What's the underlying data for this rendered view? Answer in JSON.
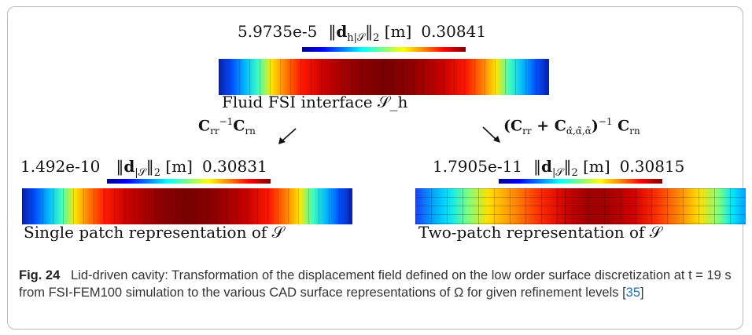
{
  "figure": {
    "top": {
      "min": "5.9735e-5",
      "max": "0.30841",
      "label": "‖d_h|𝒮‖₂ [m]",
      "strip_label": "Fluid FSI interface 𝒮_h"
    },
    "left": {
      "operator": "C_rr^−1 C_rn",
      "min": "1.492e-10",
      "max": "0.30831",
      "label": "‖d|𝒮‖₂ [m]",
      "strip_label": "Single patch representation of 𝒮"
    },
    "right": {
      "operator": "(C_rr + C_α̂,α̃,ᾱ)^−1 C_rn",
      "min": "1.7905e-11",
      "max": "0.30815",
      "label": "‖d|𝒮‖₂ [m]",
      "strip_label": "Two-patch representation of 𝒮"
    }
  },
  "caption": {
    "label": "Fig. 24",
    "text_before_ref": "Lid-driven cavity: Transformation of the displacement field defined on the low order surface discretization at t = 19 s from FSI-FEM100 simulation to the various CAD surface representations of Ω for given refinement levels [",
    "ref": "35",
    "text_after_ref": "]"
  }
}
